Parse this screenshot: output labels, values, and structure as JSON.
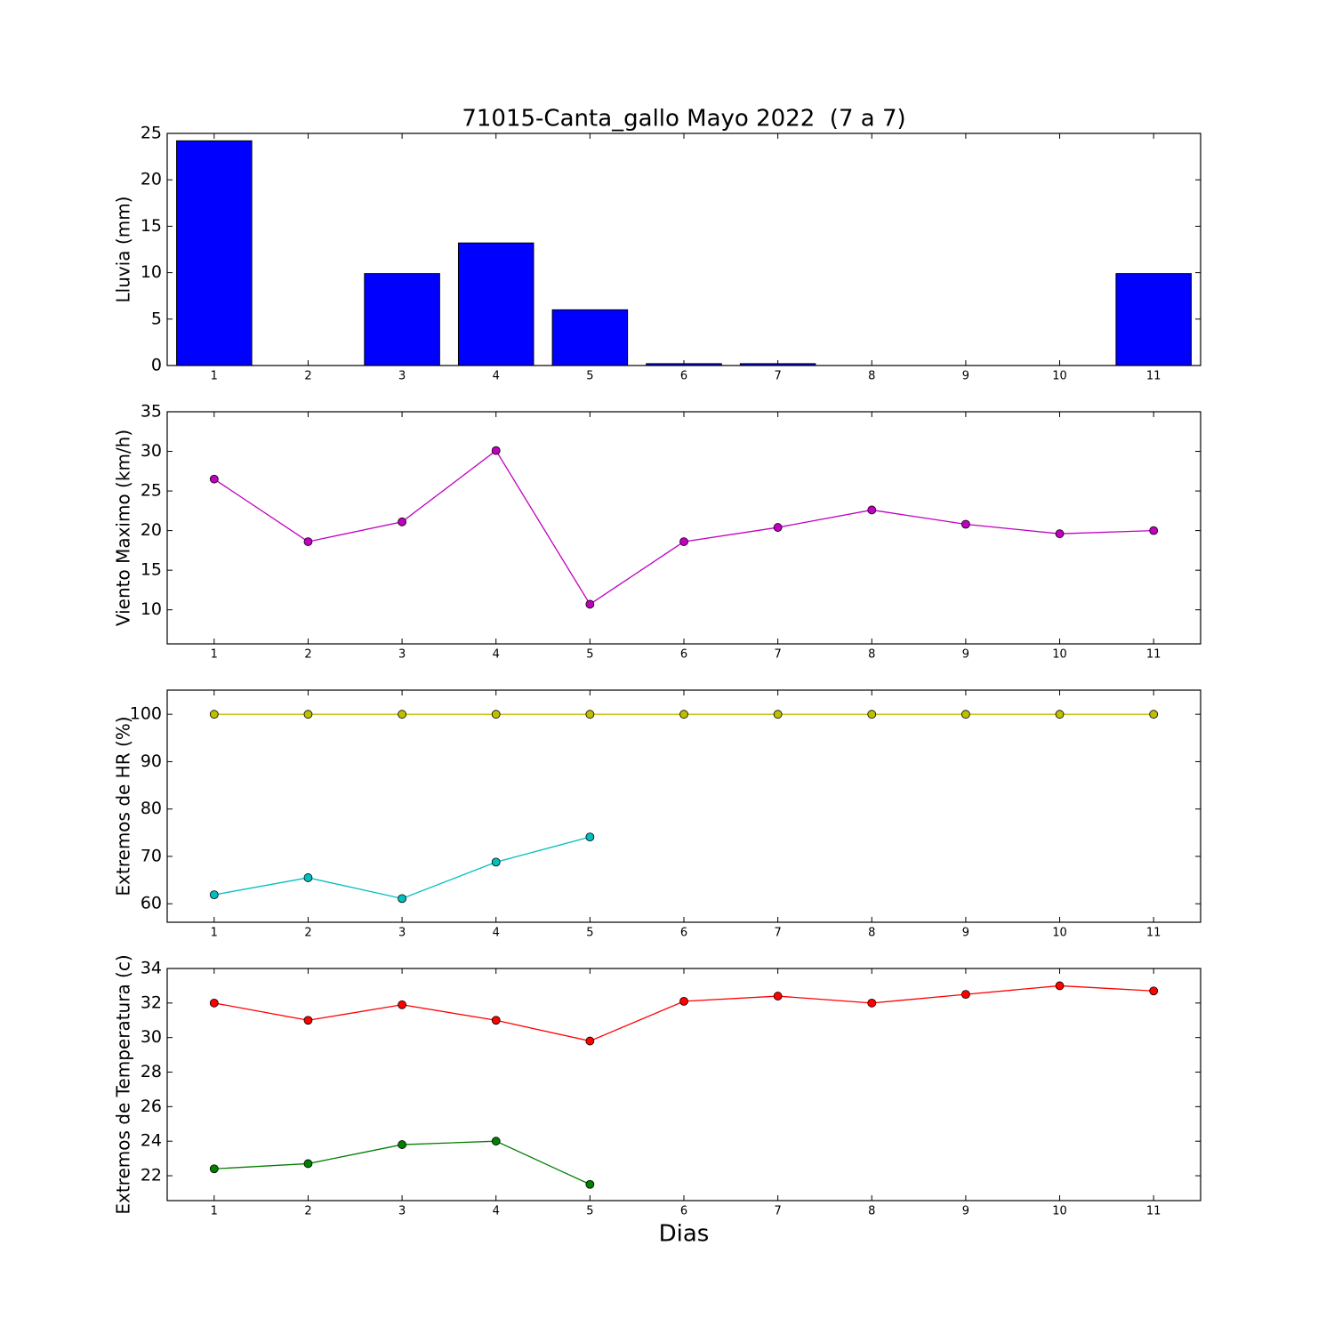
{
  "chart_data": [
    {
      "type": "bar",
      "title": "71015-Canta_gallo Mayo 2022  (7 a 7)",
      "ylabel": "Lluvia (mm)",
      "x": [
        1,
        2,
        3,
        4,
        5,
        6,
        7,
        8,
        9,
        10,
        11
      ],
      "values": [
        24.2,
        0,
        9.9,
        13.2,
        6,
        0.2,
        0.2,
        0,
        0,
        0,
        9.9
      ],
      "color": "#0000ff",
      "xlim": [
        0.5,
        11.5
      ],
      "xticks": [
        1,
        2,
        3,
        4,
        5,
        6,
        7,
        8,
        9,
        10,
        11
      ],
      "ylim": [
        0,
        25
      ],
      "yticks": [
        0,
        5,
        10,
        15,
        20,
        25
      ]
    },
    {
      "type": "line",
      "ylabel": "Viento Maximo (km/h)",
      "x": [
        1,
        2,
        3,
        4,
        5,
        6,
        7,
        8,
        9,
        10,
        11
      ],
      "series": [
        {
          "color": "#bf00bf",
          "values": [
            26.5,
            18.6,
            21.1,
            30.1,
            10.7,
            18.6,
            20.4,
            22.6,
            20.8,
            19.6,
            20.0
          ]
        }
      ],
      "xlim": [
        0.5,
        11.5
      ],
      "xticks": [
        1,
        2,
        3,
        4,
        5,
        6,
        7,
        8,
        9,
        10,
        11
      ],
      "ylim": [
        5.7,
        35
      ],
      "yticks": [
        10,
        15,
        20,
        25,
        30,
        35
      ]
    },
    {
      "type": "line",
      "ylabel": "Extremos de HR (%)",
      "x": [
        1,
        2,
        3,
        4,
        5,
        6,
        7,
        8,
        9,
        10,
        11
      ],
      "series": [
        {
          "color": "#bfbf00",
          "values": [
            100,
            100,
            100,
            100,
            100,
            100,
            100,
            100,
            100,
            100,
            100
          ]
        },
        {
          "color": "#00bfbf",
          "values": [
            61.9,
            65.5,
            61.1,
            68.8,
            74.1,
            null,
            null,
            null,
            null,
            null,
            null
          ]
        }
      ],
      "xlim": [
        0.5,
        11.5
      ],
      "xticks": [
        1,
        2,
        3,
        4,
        5,
        6,
        7,
        8,
        9,
        10,
        11
      ],
      "ylim": [
        56.1,
        105.1
      ],
      "yticks": [
        60,
        70,
        80,
        90,
        100
      ]
    },
    {
      "type": "line",
      "ylabel": "Extremos de Temperatura (c)",
      "xlabel": "Dias",
      "x": [
        1,
        2,
        3,
        4,
        5,
        6,
        7,
        8,
        9,
        10,
        11
      ],
      "series": [
        {
          "color": "#ff0000",
          "values": [
            32.0,
            31.0,
            31.9,
            31.0,
            29.8,
            32.1,
            32.4,
            32.0,
            32.5,
            33.0,
            32.7
          ]
        },
        {
          "color": "#007f00",
          "values": [
            22.4,
            22.7,
            23.8,
            24.0,
            21.5,
            null,
            null,
            null,
            null,
            null,
            null
          ]
        }
      ],
      "xlim": [
        0.5,
        11.5
      ],
      "xticks": [
        1,
        2,
        3,
        4,
        5,
        6,
        7,
        8,
        9,
        10,
        11
      ],
      "ylim": [
        20.56,
        34
      ],
      "yticks": [
        22,
        24,
        26,
        28,
        30,
        32,
        34
      ]
    }
  ]
}
